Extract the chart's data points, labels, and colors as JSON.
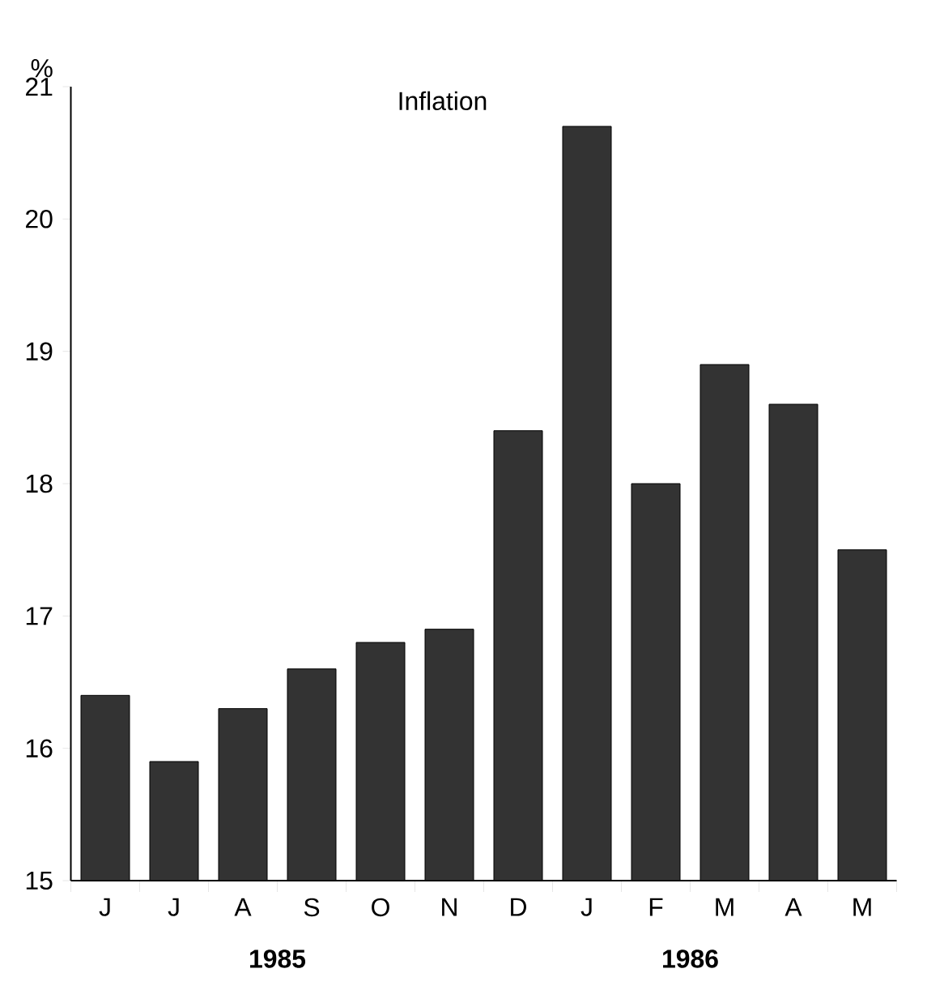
{
  "chart_data": {
    "type": "bar",
    "title": "Inflation",
    "ylabel": "%",
    "categories": [
      "J",
      "J",
      "A",
      "S",
      "O",
      "N",
      "D",
      "J",
      "F",
      "M",
      "A",
      "M"
    ],
    "values": [
      16.4,
      15.9,
      16.3,
      16.6,
      16.8,
      16.9,
      18.4,
      20.7,
      18.0,
      18.9,
      18.6,
      17.5
    ],
    "color": "#333333",
    "ylim": [
      15,
      21
    ],
    "yticks": [
      15,
      16,
      17,
      18,
      19,
      20,
      21
    ],
    "annotations": [
      "1985",
      "1986"
    ]
  }
}
